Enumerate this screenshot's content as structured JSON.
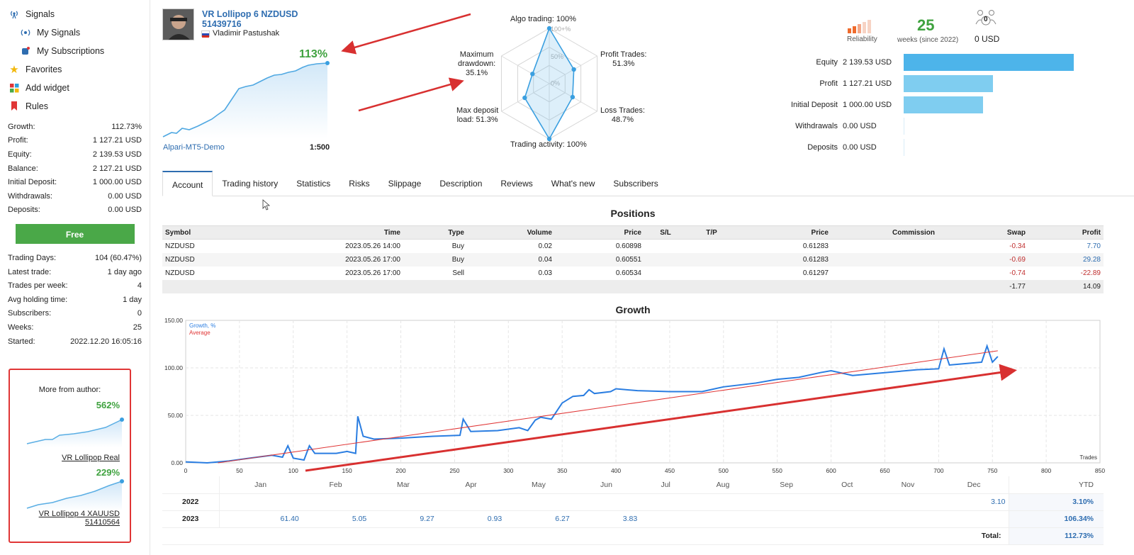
{
  "nav": {
    "signals": "Signals",
    "my_signals": "My Signals",
    "my_subscriptions": "My Subscriptions",
    "favorites": "Favorites",
    "add_widget": "Add widget",
    "rules": "Rules"
  },
  "stats1": [
    {
      "label": "Growth:",
      "value": "112.73%"
    },
    {
      "label": "Profit:",
      "value": "1 127.21 USD"
    },
    {
      "label": "Equity:",
      "value": "2 139.53 USD"
    },
    {
      "label": "Balance:",
      "value": "2 127.21 USD"
    },
    {
      "label": "Initial Deposit:",
      "value": "1 000.00 USD"
    },
    {
      "label": "Withdrawals:",
      "value": "0.00 USD"
    },
    {
      "label": "Deposits:",
      "value": "0.00 USD"
    }
  ],
  "free_button": "Free",
  "stats2": [
    {
      "label": "Trading Days:",
      "value": "104 (60.47%)"
    },
    {
      "label": "Latest trade:",
      "value": "1 day ago"
    },
    {
      "label": "Trades per week:",
      "value": "4"
    },
    {
      "label": "Avg holding time:",
      "value": "1 day"
    },
    {
      "label": "Subscribers:",
      "value": "0"
    },
    {
      "label": "Weeks:",
      "value": "25"
    },
    {
      "label": "Started:",
      "value": "2022.12.20 16:05:16"
    }
  ],
  "author": {
    "title": "More from author:",
    "items": [
      {
        "pct": "562%",
        "name": "VR Lollipop Real",
        "name2": ""
      },
      {
        "pct": "229%",
        "name": "VR Lollipop 4 XAUUSD",
        "name2": "51410564"
      }
    ]
  },
  "signal": {
    "title": "VR Lollipop 6 NZDUSD",
    "number": "51439716",
    "author": "Vladimir Pastushak",
    "growth": "113%",
    "broker": "Alpari-MT5-Demo",
    "leverage": "1:500"
  },
  "radar": {
    "algo": "Algo trading: 100%",
    "profit_trades_1": "Profit Trades:",
    "profit_trades_2": "51.3%",
    "loss_trades_1": "Loss Trades:",
    "loss_trades_2": "48.7%",
    "activity": "Trading activity: 100%",
    "deposit_load_1": "Max deposit",
    "deposit_load_2": "load: 51.3%",
    "drawdown_1": "Maximum",
    "drawdown_2": "drawdown:",
    "drawdown_3": "35.1%",
    "ring_100": "100+%",
    "ring_50": "50%",
    "ring_0": "0%",
    "values": [
      100,
      51.3,
      48.7,
      100,
      51.3,
      35.1
    ]
  },
  "summary": {
    "reliability": "Reliability",
    "weeks": "25",
    "weeks_label": "weeks (since 2022)",
    "subscribers_count": "0",
    "subscribers_funds": "0 USD"
  },
  "bars": [
    {
      "label": "Equity",
      "value": "2 139.53 USD",
      "amount": 2139.53
    },
    {
      "label": "Profit",
      "value": "1 127.21 USD",
      "amount": 1127.21
    },
    {
      "label": "Initial Deposit",
      "value": "1 000.00 USD",
      "amount": 1000.0
    },
    {
      "label": "Withdrawals",
      "value": "0.00 USD",
      "amount": 0
    },
    {
      "label": "Deposits",
      "value": "0.00 USD",
      "amount": 0
    }
  ],
  "tabs": [
    "Account",
    "Trading history",
    "Statistics",
    "Risks",
    "Slippage",
    "Description",
    "Reviews",
    "What's new",
    "Subscribers"
  ],
  "positions": {
    "title": "Positions",
    "headers": [
      "Symbol",
      "Time",
      "Type",
      "Volume",
      "Price",
      "S/L",
      "T/P",
      "Price",
      "Commission",
      "Swap",
      "Profit"
    ],
    "rows": [
      [
        "NZDUSD",
        "2023.05.26 14:00",
        "Buy",
        "0.02",
        "0.60898",
        "",
        "",
        "0.61283",
        "",
        "-0.34",
        "7.70"
      ],
      [
        "NZDUSD",
        "2023.05.26 17:00",
        "Buy",
        "0.04",
        "0.60551",
        "",
        "",
        "0.61283",
        "",
        "-0.69",
        "29.28"
      ],
      [
        "NZDUSD",
        "2023.05.26 17:00",
        "Sell",
        "0.03",
        "0.60534",
        "",
        "",
        "0.61297",
        "",
        "-0.74",
        "-22.89"
      ]
    ],
    "total_swap": "-1.77",
    "total_profit": "14.09"
  },
  "growth_title": "Growth",
  "chart_data": {
    "type": "line",
    "title": "Growth",
    "xlabel": "Trades",
    "ylabel": "",
    "xlim": [
      0,
      850
    ],
    "ylim": [
      0,
      150
    ],
    "x_ticks": [
      "0",
      "50",
      "100",
      "150",
      "200",
      "250",
      "300",
      "350",
      "400",
      "450",
      "500",
      "550",
      "600",
      "650",
      "700",
      "750",
      "800",
      "850"
    ],
    "y_ticks": [
      "0.00",
      "50.00",
      "100.00",
      "150.00"
    ],
    "legend": [
      "Growth, %",
      "Average"
    ],
    "legend_position": "top-left",
    "series": [
      {
        "name": "Growth, %",
        "color": "#2a7de1",
        "x": [
          0,
          20,
          40,
          60,
          80,
          90,
          95,
          100,
          110,
          115,
          120,
          140,
          150,
          158,
          160,
          165,
          175,
          200,
          230,
          255,
          258,
          265,
          290,
          310,
          318,
          325,
          330,
          340,
          350,
          360,
          370,
          375,
          380,
          395,
          400,
          420,
          450,
          480,
          500,
          530,
          550,
          570,
          590,
          600,
          620,
          650,
          680,
          700,
          705,
          710,
          720,
          740,
          745,
          750,
          755
        ],
        "y": [
          1,
          0,
          2,
          5,
          8,
          6,
          18,
          5,
          3,
          18,
          10,
          10,
          12,
          10,
          49,
          28,
          25,
          26,
          28,
          29,
          46,
          33,
          34,
          37,
          34,
          45,
          48,
          46,
          63,
          70,
          71,
          77,
          73,
          75,
          78,
          76,
          75,
          75,
          80,
          84,
          88,
          90,
          95,
          97,
          92,
          95,
          98,
          99,
          120,
          103,
          104,
          106,
          123,
          106,
          112
        ]
      },
      {
        "name": "Average",
        "color": "#e03636",
        "x": [
          30,
          755
        ],
        "y": [
          0,
          118
        ]
      }
    ]
  },
  "ytd": {
    "months": [
      "Jan",
      "Feb",
      "Mar",
      "Apr",
      "May",
      "Jun",
      "Jul",
      "Aug",
      "Sep",
      "Oct",
      "Nov",
      "Dec"
    ],
    "ytd_label": "YTD",
    "rows": [
      {
        "year": "2022",
        "values": [
          "",
          "",
          "",
          "",
          "",
          "",
          "",
          "",
          "",
          "",
          "",
          "3.10"
        ],
        "ytd": "3.10%"
      },
      {
        "year": "2023",
        "values": [
          "61.40",
          "5.05",
          "9.27",
          "0.93",
          "6.27",
          "3.83",
          "",
          "",
          "",
          "",
          "",
          ""
        ],
        "ytd": "106.34%"
      }
    ],
    "total_label": "Total:",
    "total": "112.73%"
  }
}
